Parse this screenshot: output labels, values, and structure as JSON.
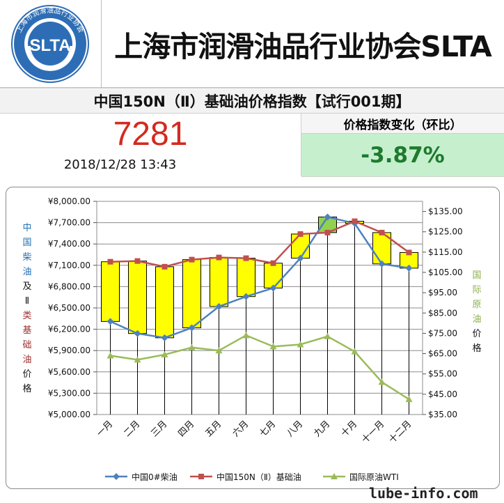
{
  "header": {
    "logo_ring_text": "上海市润滑油品行业协会",
    "logo_text": "SLTA",
    "org_name": "上海市润滑油品行业协会SLTA"
  },
  "index": {
    "title": "中国150N（Ⅱ）基础油价格指数【试行001期】",
    "value": "7281",
    "timestamp": "2018/12/28 13:43",
    "change_label": "价格指数变化（环比）",
    "change_value": "-3.87%",
    "change_bg": "#c6efce",
    "change_color": "#1e7a2e",
    "value_color": "#d42a1f"
  },
  "chart_labels": {
    "left_axis_title": [
      "中",
      "国",
      "柴",
      "油",
      "及",
      "Ⅱ",
      "类",
      "基",
      "础",
      "油",
      "价",
      "格"
    ],
    "right_axis_title": [
      "国",
      "际",
      "原",
      "油",
      "价",
      "格"
    ]
  },
  "chart_data": {
    "type": "line",
    "categories": [
      "一月",
      "二月",
      "三月",
      "四月",
      "五月",
      "六月",
      "七月",
      "八月",
      "九月",
      "十月",
      "十一月",
      "十二月"
    ],
    "y_left": {
      "range": [
        5000,
        8000
      ],
      "ticks": [
        "¥5,000.00",
        "¥5,300.00",
        "¥5,600.00",
        "¥5,900.00",
        "¥6,200.00",
        "¥6,500.00",
        "¥6,800.00",
        "¥7,100.00",
        "¥7,400.00",
        "¥7,700.00",
        "¥8,000.00"
      ]
    },
    "y_right": {
      "range": [
        35,
        140
      ],
      "ticks": [
        "$35.00",
        "$45.00",
        "$55.00",
        "$65.00",
        "$75.00",
        "$85.00",
        "$95.00",
        "$105.00",
        "$115.00",
        "$125.00",
        "$135.00"
      ]
    },
    "series": [
      {
        "name": "中国0#柴油",
        "axis": "left",
        "color": "#4f81bd",
        "marker": "diamond",
        "values": [
          6310,
          6140,
          6080,
          6220,
          6520,
          6660,
          6780,
          7200,
          7780,
          7690,
          7120,
          7060
        ]
      },
      {
        "name": "中国150N（Ⅱ）基础油",
        "axis": "left",
        "color": "#c0504d",
        "marker": "square",
        "values": [
          7150,
          7160,
          7080,
          7180,
          7210,
          7200,
          7130,
          7540,
          7560,
          7720,
          7560,
          7280
        ]
      },
      {
        "name": "国际原油WTI",
        "axis": "right",
        "color": "#9bbb59",
        "marker": "triangle",
        "values": [
          64,
          62,
          64.5,
          68,
          66.5,
          74,
          68.5,
          69.5,
          73.5,
          66,
          51,
          42.5
        ]
      }
    ],
    "bar_colors": {
      "up": "#92d050",
      "down": "#ffff00"
    },
    "grid": true,
    "legend_position": "bottom"
  },
  "footer": {
    "watermark": "lube-info.com"
  }
}
